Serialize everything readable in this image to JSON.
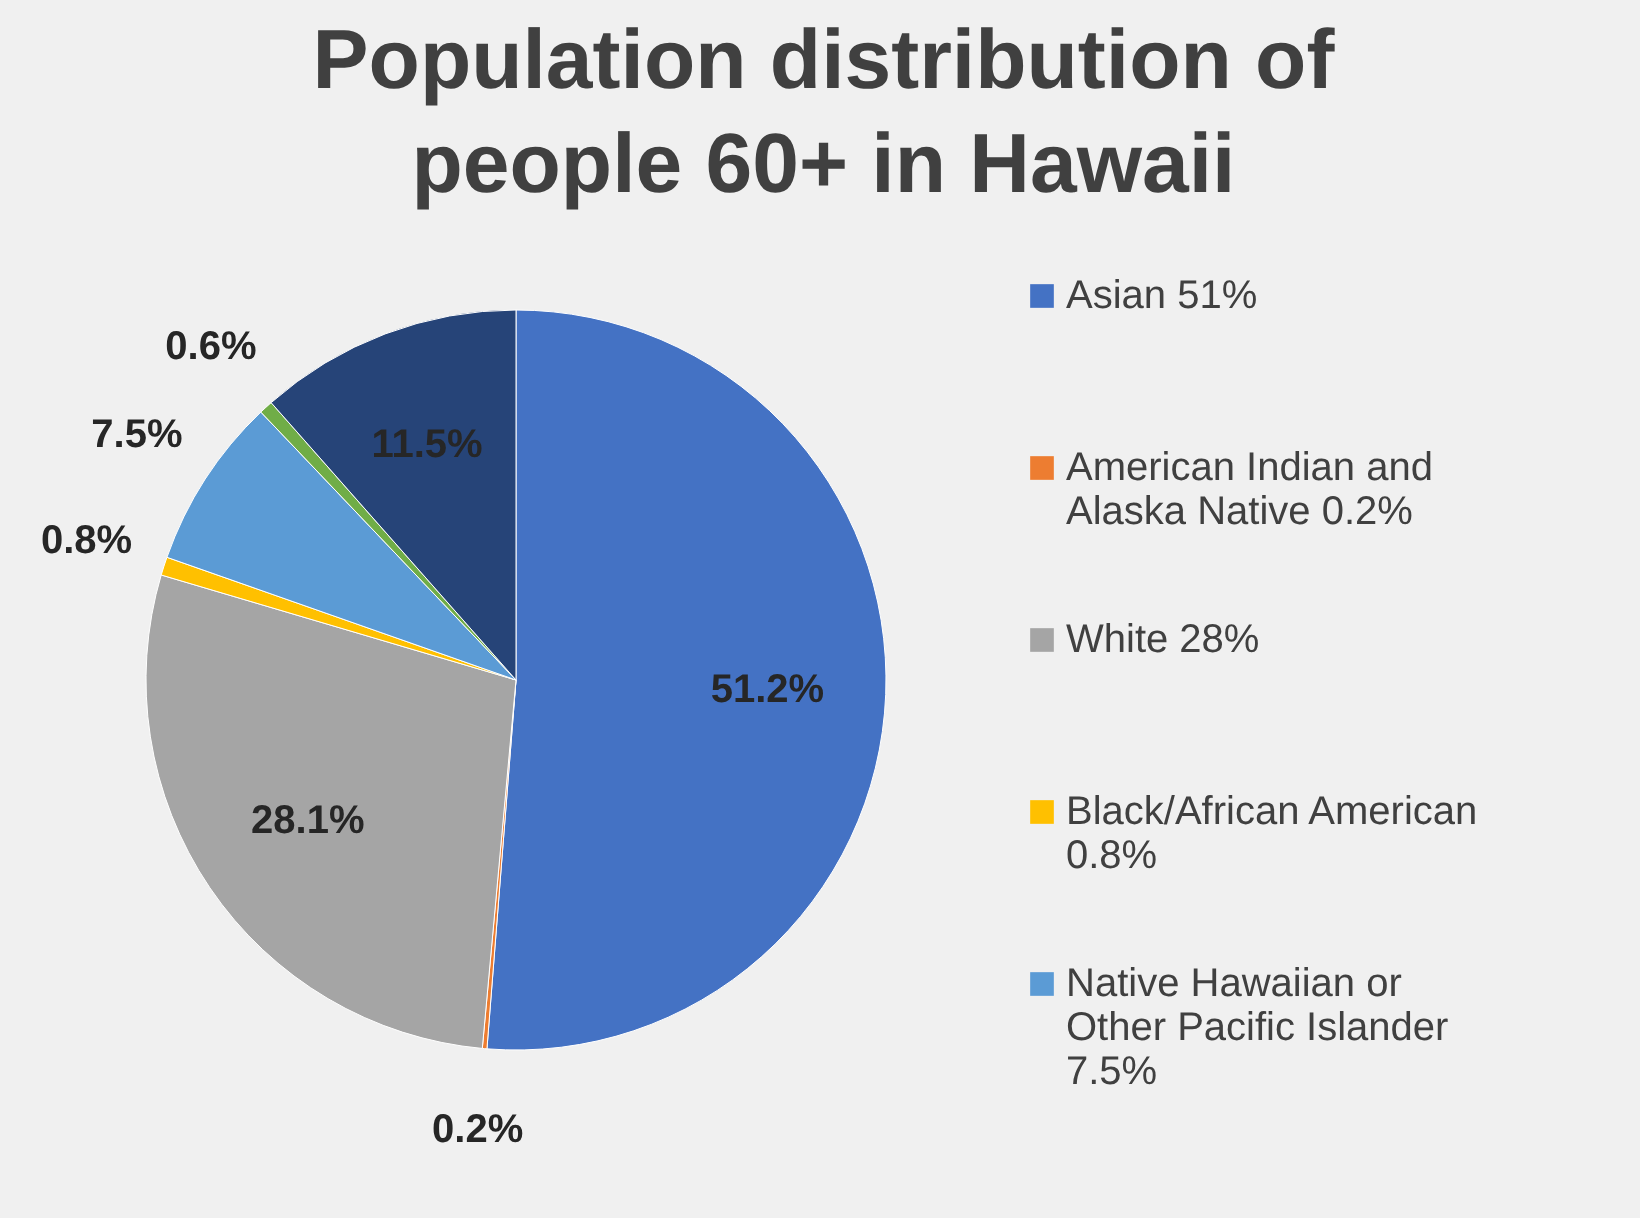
{
  "chart_data": {
    "type": "pie",
    "title": "Population distribution of people 60+ in Hawaii",
    "categories": [
      "Asian 51%",
      "American Indian and Alaska Native 0.2%",
      "White 28%",
      "Black/African American 0.8%",
      "Native Hawaiian or Other Pacific Islander 7.5%",
      null,
      null
    ],
    "values": [
      51.2,
      0.2,
      28.1,
      0.8,
      7.5,
      0.6,
      11.5
    ],
    "value_labels": [
      "51.2%",
      "0.2%",
      "28.1%",
      "0.8%",
      "7.5%",
      "0.6%",
      "11.5%"
    ],
    "colors": [
      "#4472c4",
      "#ed7d31",
      "#a5a5a5",
      "#ffc000",
      "#5b9bd5",
      "#70ad47",
      "#264478"
    ],
    "legend": "right"
  }
}
